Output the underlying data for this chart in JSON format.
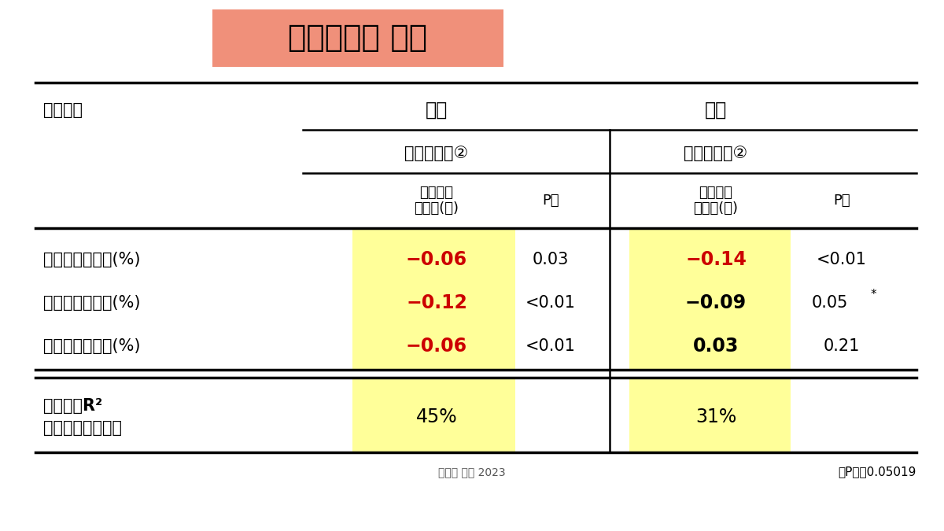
{
  "title": "（検討２） 結果",
  "title_bg_color": "#F0907A",
  "title_text_color": "#000000",
  "bg_color": "#FFFFFF",
  "rows": [
    {
      "label": "現在喫煙者割合(%)",
      "m_coef": "−0.06",
      "m_p": "0.03",
      "f_coef": "−0.14",
      "f_p": "<0.01",
      "m_coef_red": true,
      "f_coef_red": true
    },
    {
      "label": "血圧高値者割合(%)",
      "m_coef": "−0.12",
      "m_p": "<0.01",
      "f_coef": "−0.09",
      "f_p": "0.05*",
      "m_coef_red": true,
      "f_coef_red": false
    },
    {
      "label": "過剰飲酒者割合(%)",
      "m_coef": "−0.06",
      "m_p": "<0.01",
      "f_coef": "0.03",
      "f_p": "0.21",
      "m_coef_red": true,
      "f_coef_red": false
    }
  ],
  "footer_label_line1": "決定係数R²",
  "footer_label_line2": "（自由度調整済）",
  "footer_m_val": "45%",
  "footer_f_val": "31%",
  "footnote_left": "和医大 藤吉 2023",
  "footnote_right": "＊P値＝0.05019",
  "yellow_color": "#FFFF99",
  "red_color": "#CC0000",
  "black_color": "#000000",
  "line_color": "#000000"
}
